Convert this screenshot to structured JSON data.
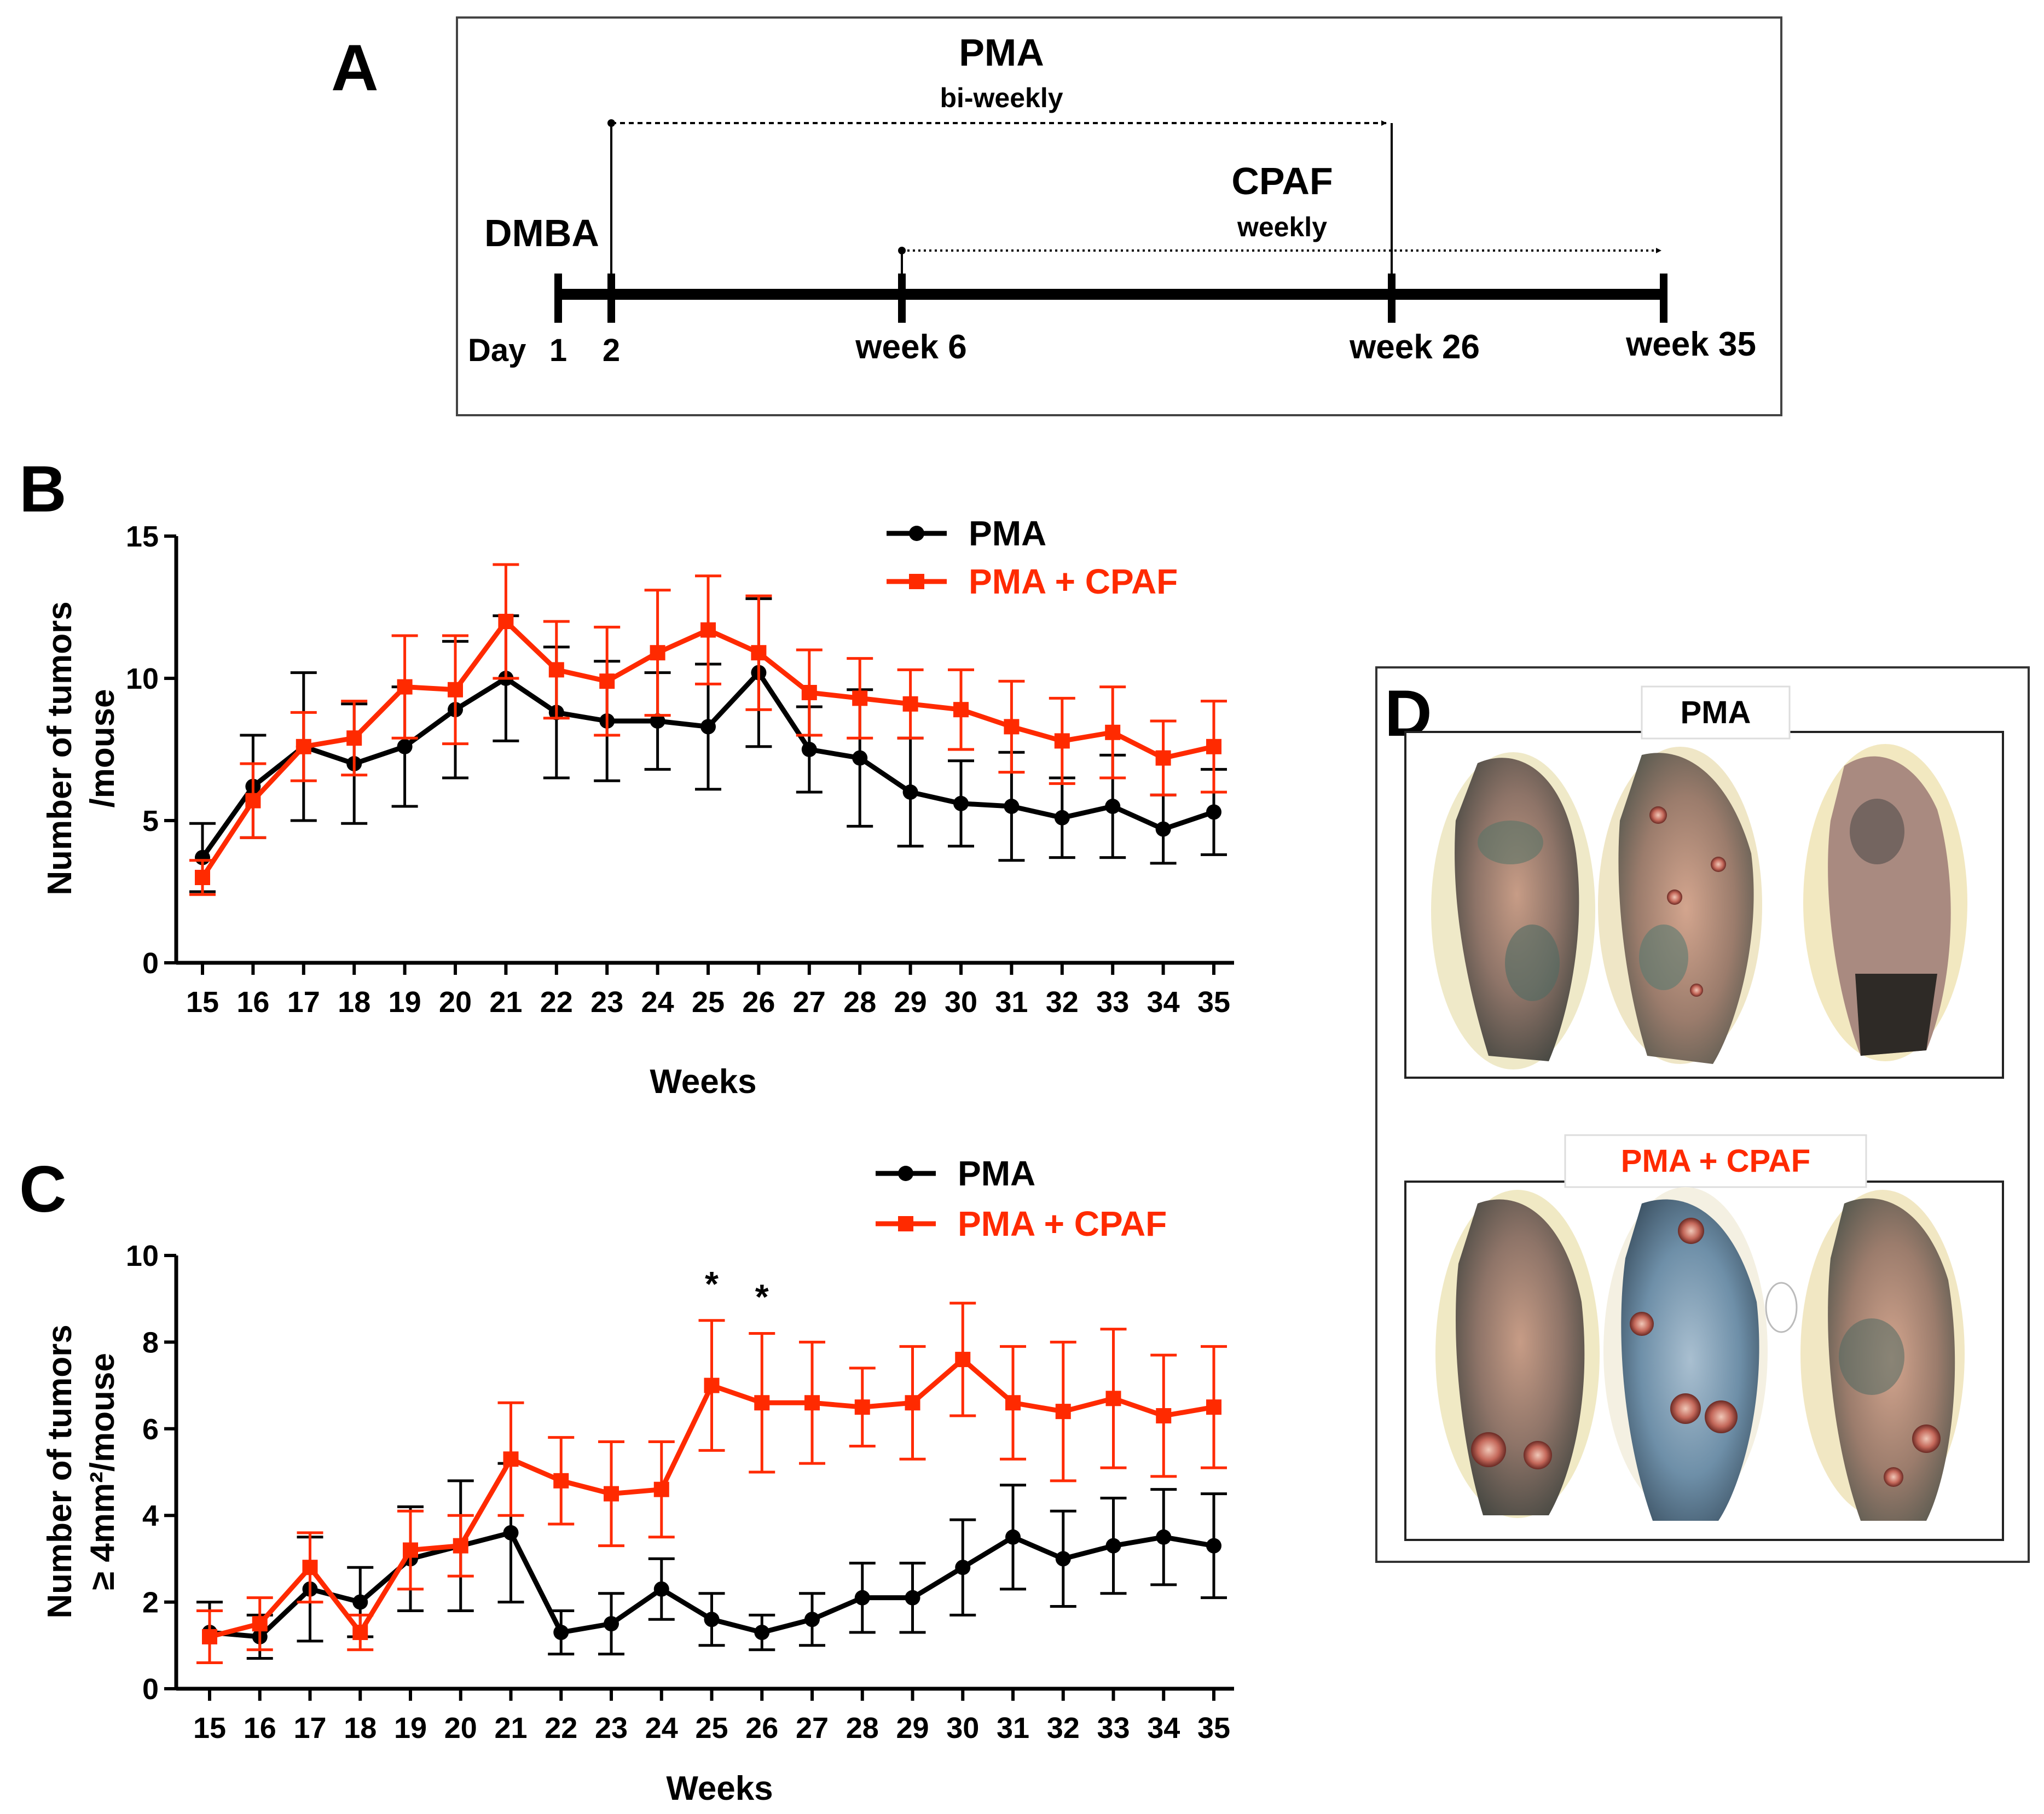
{
  "panel_letters": {
    "a": "A",
    "b": "B",
    "c": "C",
    "d": "D"
  },
  "colors": {
    "pma": "#000000",
    "cpaf": "#ff2a00"
  },
  "timeline": {
    "pma_label": "PMA",
    "pma_freq": "bi-weekly",
    "cpaf_label": "CPAF",
    "cpaf_freq": "weekly",
    "dmba_label": "DMBA",
    "day_label": "Day",
    "ticks": [
      "1",
      "2",
      "week 6",
      "week 26",
      "week 35"
    ]
  },
  "photos": {
    "pma_title": "PMA",
    "cpaf_title": "PMA + CPAF"
  },
  "chart_data": [
    {
      "id": "B",
      "type": "line",
      "title": "",
      "xlabel": "Weeks",
      "ylabel_lines": [
        "Number of tumors",
        "/mouse"
      ],
      "categories": [
        "15",
        "16",
        "17",
        "18",
        "19",
        "20",
        "21",
        "22",
        "23",
        "24",
        "25",
        "26",
        "27",
        "28",
        "29",
        "30",
        "31",
        "32",
        "33",
        "34",
        "35"
      ],
      "ylim": [
        0,
        15
      ],
      "yticks": [
        "0",
        "5",
        "10",
        "15"
      ],
      "legend": [
        "PMA",
        "PMA + CPAF"
      ],
      "legend_position": "top-right",
      "series": [
        {
          "name": "PMA",
          "color": "#000000",
          "marker": "circle",
          "values": [
            3.7,
            6.2,
            7.6,
            7.0,
            7.6,
            8.9,
            10.0,
            8.8,
            8.5,
            8.5,
            8.3,
            10.2,
            7.5,
            7.2,
            6.0,
            5.6,
            5.5,
            5.1,
            5.5,
            4.7,
            5.3
          ],
          "errors": [
            1.2,
            1.8,
            2.6,
            2.1,
            2.1,
            2.4,
            2.2,
            2.3,
            2.1,
            1.7,
            2.2,
            2.6,
            1.5,
            2.4,
            1.9,
            1.5,
            1.9,
            1.4,
            1.8,
            1.2,
            1.5
          ]
        },
        {
          "name": "PMA + CPAF",
          "color": "#ff2a00",
          "marker": "square",
          "values": [
            3.0,
            5.7,
            7.6,
            7.9,
            9.7,
            9.6,
            12.0,
            10.3,
            9.9,
            10.9,
            11.7,
            10.9,
            9.5,
            9.3,
            9.1,
            8.9,
            8.3,
            7.8,
            8.1,
            7.2,
            7.6
          ],
          "errors": [
            0.6,
            1.3,
            1.2,
            1.3,
            1.8,
            1.9,
            2.0,
            1.7,
            1.9,
            2.2,
            1.9,
            2.0,
            1.5,
            1.4,
            1.2,
            1.4,
            1.6,
            1.5,
            1.6,
            1.3,
            1.6
          ]
        }
      ]
    },
    {
      "id": "C",
      "type": "line",
      "title": "",
      "xlabel": "Weeks",
      "ylabel_lines": [
        "Number of tumors",
        "≥ 4mm²/mouse"
      ],
      "categories": [
        "15",
        "16",
        "17",
        "18",
        "19",
        "20",
        "21",
        "22",
        "23",
        "24",
        "25",
        "26",
        "27",
        "28",
        "29",
        "30",
        "31",
        "32",
        "33",
        "34",
        "35"
      ],
      "ylim": [
        0,
        10
      ],
      "yticks": [
        "0",
        "2",
        "4",
        "6",
        "8",
        "10"
      ],
      "legend": [
        "PMA",
        "PMA + CPAF"
      ],
      "legend_position": "top-right",
      "annotations": [
        {
          "category": "25",
          "text": "*"
        },
        {
          "category": "26",
          "text": "*"
        }
      ],
      "series": [
        {
          "name": "PMA",
          "color": "#000000",
          "marker": "circle",
          "values": [
            1.3,
            1.2,
            2.3,
            2.0,
            3.0,
            3.3,
            3.6,
            1.3,
            1.5,
            2.3,
            1.6,
            1.3,
            1.6,
            2.1,
            2.1,
            2.8,
            3.5,
            3.0,
            3.3,
            3.5,
            3.3
          ],
          "errors": [
            0.7,
            0.5,
            1.2,
            0.8,
            1.2,
            1.5,
            1.6,
            0.5,
            0.7,
            0.7,
            0.6,
            0.4,
            0.6,
            0.8,
            0.8,
            1.1,
            1.2,
            1.1,
            1.1,
            1.1,
            1.2
          ]
        },
        {
          "name": "PMA + CPAF",
          "color": "#ff2a00",
          "marker": "square",
          "values": [
            1.2,
            1.5,
            2.8,
            1.3,
            3.2,
            3.3,
            5.3,
            4.8,
            4.5,
            4.6,
            7.0,
            6.6,
            6.6,
            6.5,
            6.6,
            7.6,
            6.6,
            6.4,
            6.7,
            6.3,
            6.5
          ],
          "errors": [
            0.6,
            0.6,
            0.8,
            0.4,
            0.9,
            0.7,
            1.3,
            1.0,
            1.2,
            1.1,
            1.5,
            1.6,
            1.4,
            0.9,
            1.3,
            1.3,
            1.3,
            1.6,
            1.6,
            1.4,
            1.4
          ]
        }
      ]
    }
  ]
}
